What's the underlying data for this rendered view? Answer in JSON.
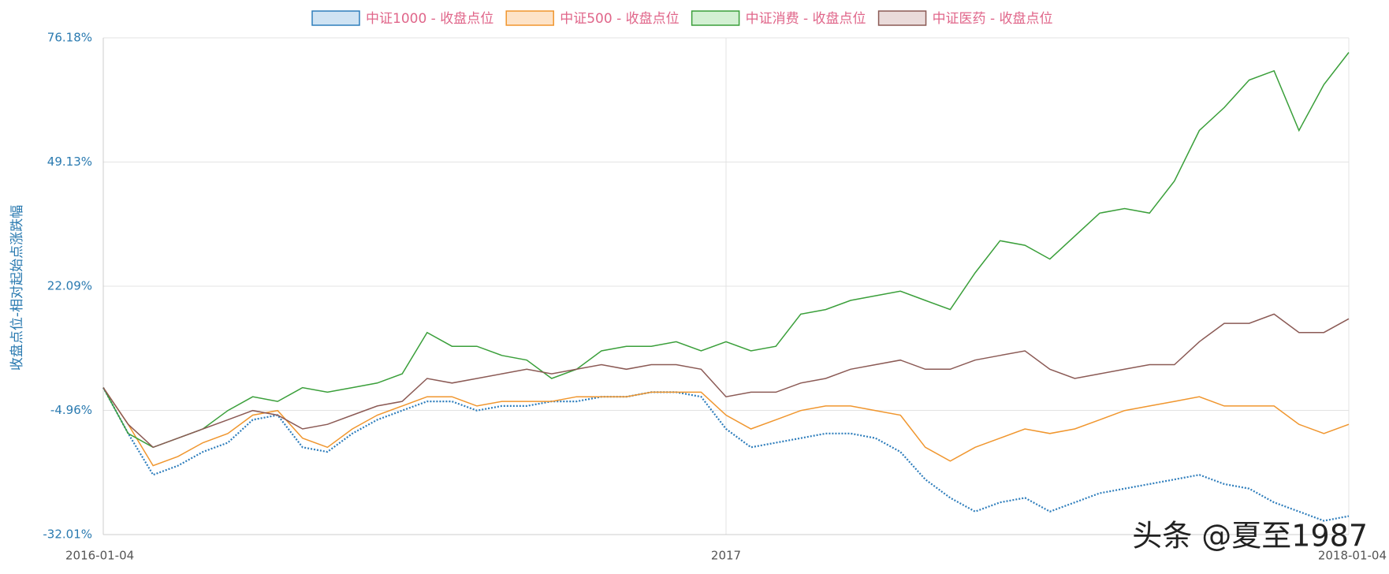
{
  "chart_data": {
    "type": "line",
    "y_label": "收盘点位-相对起始点涨跌幅",
    "watermark": "头条 @夏至1987",
    "x": [
      2016,
      2016.04,
      2016.08,
      2016.12,
      2016.16,
      2016.2,
      2016.24,
      2016.28,
      2016.32,
      2016.36,
      2016.4,
      2016.44,
      2016.48,
      2016.52,
      2016.56,
      2016.6,
      2016.64,
      2016.68,
      2016.72,
      2016.76,
      2016.8,
      2016.84,
      2016.88,
      2016.92,
      2016.96,
      2017,
      2017.04,
      2017.08,
      2017.12,
      2017.16,
      2017.2,
      2017.24,
      2017.28,
      2017.32,
      2017.36,
      2017.4,
      2017.44,
      2017.48,
      2017.52,
      2017.56,
      2017.6,
      2017.64,
      2017.68,
      2017.72,
      2017.76,
      2017.8,
      2017.84,
      2017.88,
      2017.92,
      2017.96,
      2018
    ],
    "xlim": [
      2016,
      2018
    ],
    "xticks": [
      {
        "value": 2016,
        "label": "2016-01-04"
      },
      2017,
      {
        "value": 2018,
        "label": "2018-01-04"
      }
    ],
    "ylim": [
      -32.01,
      76.18
    ],
    "yticks": [
      {
        "value": -32.01,
        "label": "-32.01%"
      },
      {
        "value": -4.96,
        "label": "-4.96%"
      },
      {
        "value": 22.09,
        "label": "22.09%"
      },
      {
        "value": 49.13,
        "label": "49.13%"
      },
      {
        "value": 76.18,
        "label": "76.18%"
      }
    ],
    "grid": true,
    "legend": "top",
    "series": [
      {
        "name": "中证1000 - 收盘点位",
        "color": "#2f7ebc",
        "fill": "#cfe3f3",
        "dotted": true,
        "values": [
          0,
          -10,
          -19,
          -17,
          -14,
          -12,
          -7,
          -6,
          -13,
          -14,
          -10,
          -7,
          -5,
          -3,
          -3,
          -5,
          -4,
          -4,
          -3,
          -3,
          -2,
          -2,
          -1,
          -1,
          -2,
          -9,
          -13,
          -12,
          -11,
          -10,
          -10,
          -11,
          -14,
          -20,
          -24,
          -27,
          -25,
          -24,
          -27,
          -25,
          -23,
          -22,
          -21,
          -20,
          -19,
          -21,
          -22,
          -25,
          -27,
          -29,
          -28
        ]
      },
      {
        "name": "中证500 - 收盘点位",
        "color": "#f0962e",
        "fill": "#fde3c8",
        "values": [
          0,
          -8,
          -17,
          -15,
          -12,
          -10,
          -6,
          -5,
          -11,
          -13,
          -9,
          -6,
          -4,
          -2,
          -2,
          -4,
          -3,
          -3,
          -3,
          -2,
          -2,
          -2,
          -1,
          -1,
          -1,
          -6,
          -9,
          -7,
          -5,
          -4,
          -4,
          -5,
          -6,
          -13,
          -16,
          -13,
          -11,
          -9,
          -10,
          -9,
          -7,
          -5,
          -4,
          -3,
          -2,
          -4,
          -4,
          -4,
          -8,
          -10,
          -8
        ]
      },
      {
        "name": "中证消费 - 收盘点位",
        "color": "#3a9f3a",
        "fill": "#d3f0d3",
        "values": [
          0,
          -10,
          -13,
          -11,
          -9,
          -5,
          -2,
          -3,
          0,
          -1,
          0,
          1,
          3,
          12,
          9,
          9,
          7,
          6,
          2,
          4,
          8,
          9,
          9,
          10,
          8,
          10,
          8,
          9,
          16,
          17,
          19,
          20,
          21,
          19,
          17,
          25,
          32,
          31,
          28,
          33,
          38,
          39,
          38,
          45,
          56,
          61,
          67,
          69,
          56,
          66,
          73
        ]
      },
      {
        "name": "中证医药 - 收盘点位",
        "color": "#8b5a55",
        "fill": "#eadbda",
        "values": [
          0,
          -8,
          -13,
          -11,
          -9,
          -7,
          -5,
          -6,
          -9,
          -8,
          -6,
          -4,
          -3,
          2,
          1,
          2,
          3,
          4,
          3,
          4,
          5,
          4,
          5,
          5,
          4,
          -2,
          -1,
          -1,
          1,
          2,
          4,
          5,
          6,
          4,
          4,
          6,
          7,
          8,
          4,
          2,
          3,
          4,
          5,
          5,
          10,
          14,
          14,
          16,
          12,
          12,
          15
        ]
      }
    ]
  }
}
